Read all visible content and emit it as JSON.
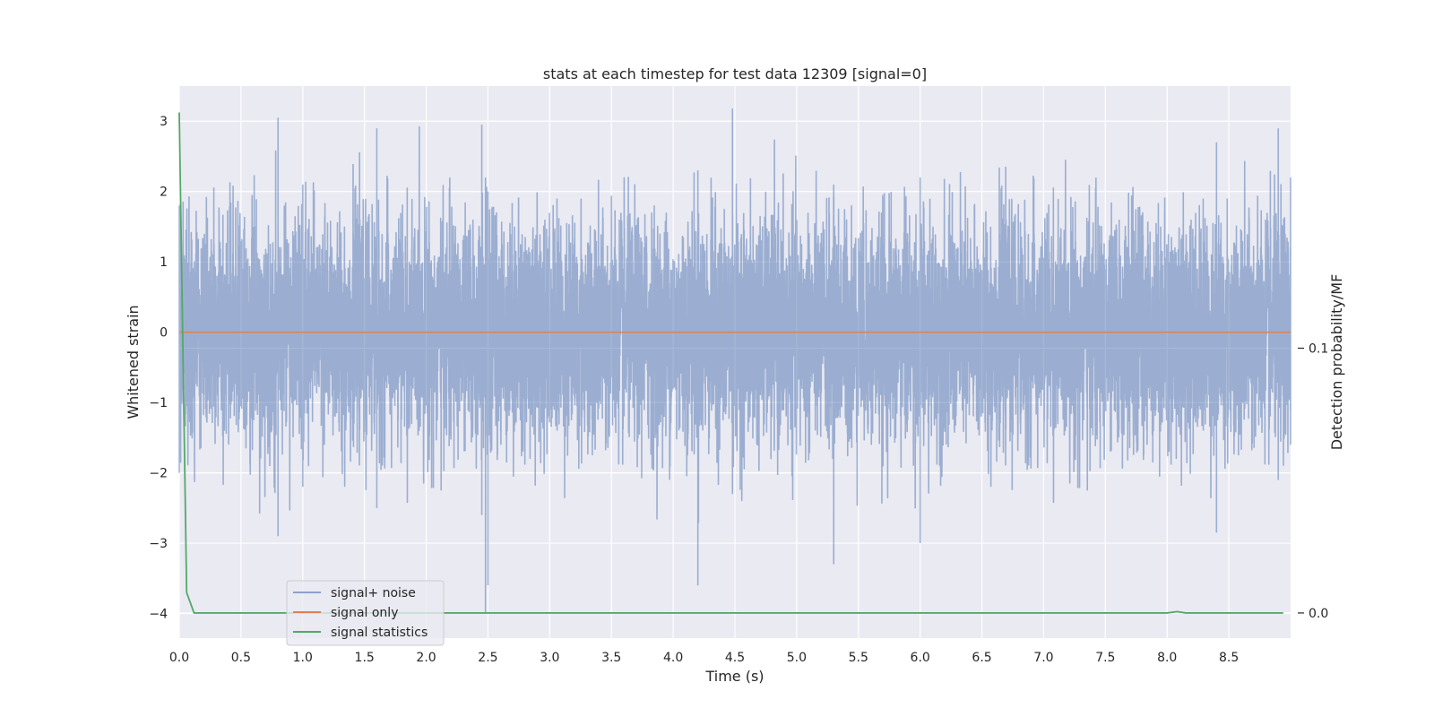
{
  "chart_data": {
    "type": "line",
    "title": "stats at each timestep for test data 12309 [signal=0]",
    "xlabel": "Time (s)",
    "ylabel": "Whitened strain",
    "ylabel_right": "Detection probability/MF",
    "xlim": [
      0.0,
      9.0
    ],
    "ylim": [
      -4.35,
      3.5
    ],
    "ylim_right": [
      -0.0095,
      0.199
    ],
    "x_ticks": [
      0.0,
      0.5,
      1.0,
      1.5,
      2.0,
      2.5,
      3.0,
      3.5,
      4.0,
      4.5,
      5.0,
      5.5,
      6.0,
      6.5,
      7.0,
      7.5,
      8.0,
      8.5
    ],
    "x_tick_labels": [
      "0.0",
      "0.5",
      "1.0",
      "1.5",
      "2.0",
      "2.5",
      "3.0",
      "3.5",
      "4.0",
      "4.5",
      "5.0",
      "5.5",
      "6.0",
      "6.5",
      "7.0",
      "7.5",
      "8.0",
      "8.5"
    ],
    "y_ticks": [
      -4,
      -3,
      -2,
      -1,
      0,
      1,
      2,
      3
    ],
    "y_tick_labels": [
      "−4",
      "−3",
      "−2",
      "−1",
      "0",
      "1",
      "2",
      "3"
    ],
    "y_ticks_right": [
      0.0,
      0.1
    ],
    "y_tick_labels_right": [
      "0.0",
      "0.1"
    ],
    "grid": true,
    "legend_position": "lower-left",
    "series": [
      {
        "name": "signal+ noise",
        "axis": "left",
        "color": "#4c72b0",
        "sample_rate_hz": 1000,
        "envelope": {
          "time": [
            0.0,
            0.8,
            1.0,
            1.6,
            2.45,
            2.48,
            2.5,
            4.2,
            4.48,
            5.3,
            6.0,
            8.4,
            8.9,
            9.0
          ],
          "max": [
            1.8,
            3.05,
            2.1,
            2.9,
            2.95,
            2.2,
            2.0,
            2.3,
            3.18,
            2.1,
            2.2,
            2.7,
            2.9,
            2.2
          ],
          "min": [
            -2.0,
            -2.9,
            -2.2,
            -2.5,
            -2.6,
            -4.0,
            -3.6,
            -3.6,
            -2.3,
            -3.3,
            -3.0,
            -2.85,
            -2.1,
            -1.6
          ]
        }
      },
      {
        "name": "signal only",
        "axis": "left",
        "color": "#dd8452",
        "x": [
          0.0,
          9.0
        ],
        "y": [
          0.0,
          0.0
        ]
      },
      {
        "name": "signal statistics",
        "axis": "right",
        "color": "#55a868",
        "x": [
          0.0,
          0.06,
          0.12,
          0.2,
          8.0,
          8.08,
          8.15,
          8.94
        ],
        "y": [
          0.189,
          0.0077,
          0.0,
          0.0,
          0.0,
          0.0005,
          0.0,
          0.0
        ]
      }
    ]
  }
}
